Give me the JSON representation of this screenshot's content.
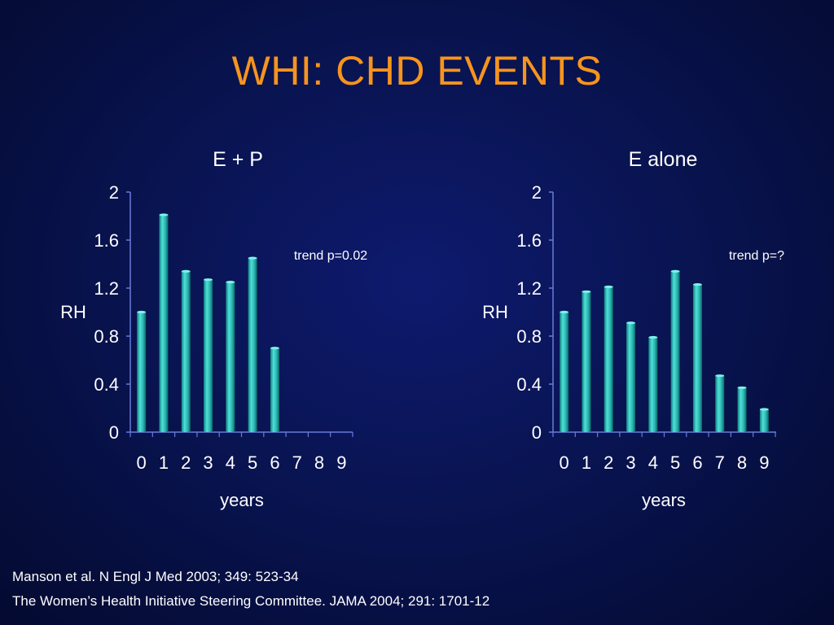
{
  "slide": {
    "title": "WHI: CHD EVENTS"
  },
  "references": [
    "Manson et al. N Engl J Med 2003; 349: 523-34",
    "The Women’s Health Initiative Steering Committee. JAMA 2004; 291: 1701-12"
  ],
  "colors": {
    "background": "#091452",
    "title": "#f7941d",
    "bar": "#2ab3b0",
    "axis": "#6a7bd8",
    "text": "#ffffff"
  },
  "chart_data": [
    {
      "type": "bar",
      "title": "E + P",
      "xlabel": "years",
      "ylabel": "RH",
      "annotation": "trend p=0.02",
      "categories": [
        "0",
        "1",
        "2",
        "3",
        "4",
        "5",
        "6",
        "7",
        "8",
        "9"
      ],
      "values": [
        1.0,
        1.81,
        1.34,
        1.27,
        1.25,
        1.45,
        0.7,
        null,
        null,
        null
      ],
      "ylim": [
        0,
        2
      ],
      "yticks": [
        "0",
        "0.4",
        "0.8",
        "1.2",
        "1.6",
        "2"
      ],
      "grid": false,
      "legend": "none"
    },
    {
      "type": "bar",
      "title": "E alone",
      "xlabel": "years",
      "ylabel": "RH",
      "annotation": "trend p=?",
      "categories": [
        "0",
        "1",
        "2",
        "3",
        "4",
        "5",
        "6",
        "7",
        "8",
        "9"
      ],
      "values": [
        1.0,
        1.17,
        1.21,
        0.91,
        0.79,
        1.34,
        1.23,
        0.47,
        0.37,
        0.19
      ],
      "ylim": [
        0,
        2
      ],
      "yticks": [
        "0",
        "0.4",
        "0.8",
        "1.2",
        "1.6",
        "2"
      ],
      "grid": false,
      "legend": "none"
    }
  ]
}
